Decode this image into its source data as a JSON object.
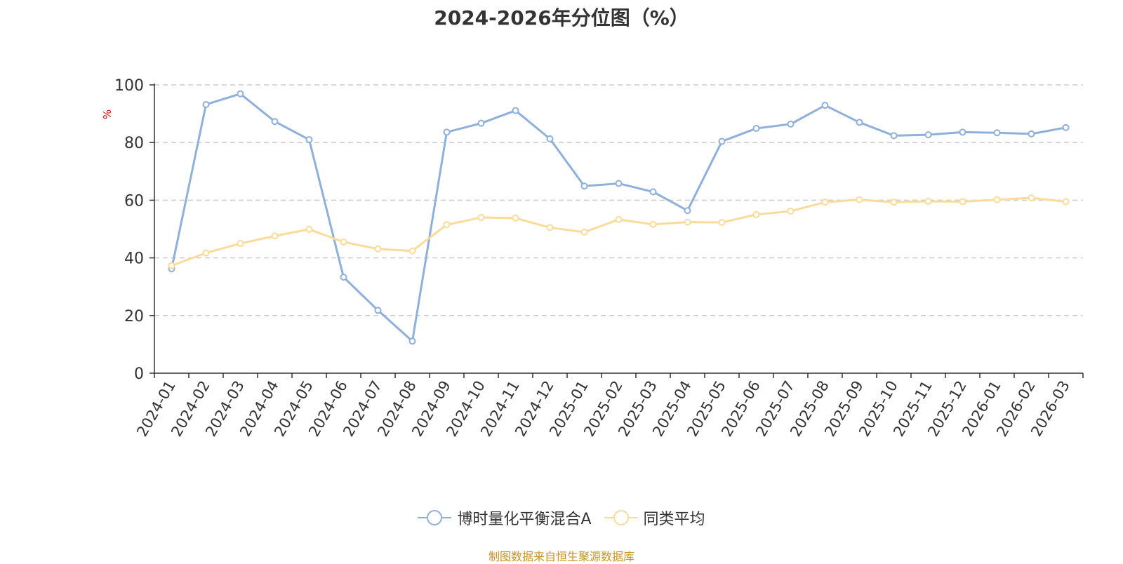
{
  "chart_data": {
    "type": "line",
    "title": "2024-2026年分位图（%）",
    "ylabel": "%",
    "xlabel": "",
    "ylim": [
      0,
      100
    ],
    "yticks": [
      0,
      20,
      40,
      60,
      80,
      100
    ],
    "grid": true,
    "legend_position": "bottom-center",
    "categories": [
      "2024-01",
      "2024-02",
      "2024-03",
      "2024-04",
      "2024-05",
      "2024-06",
      "2024-07",
      "2024-08",
      "2024-09",
      "2024-10",
      "2024-11",
      "2024-12",
      "2025-01",
      "2025-02",
      "2025-03",
      "2025-04",
      "2025-05",
      "2025-06",
      "2025-07",
      "2025-08",
      "2025-09",
      "2025-10",
      "2025-11",
      "2025-12",
      "2026-01",
      "2026-02",
      "2026-03"
    ],
    "series": [
      {
        "name": "博时量化平衡混合A",
        "color": "#8eb0db",
        "values": [
          36.2,
          93.2,
          96.9,
          87.3,
          81.0,
          33.3,
          21.8,
          11.1,
          83.6,
          86.7,
          91.1,
          81.3,
          64.9,
          65.8,
          62.9,
          56.4,
          80.4,
          84.9,
          86.4,
          92.9,
          87.0,
          82.4,
          82.7,
          83.6,
          83.4,
          83.0,
          85.2
        ]
      },
      {
        "name": "同类平均",
        "color": "#fbdb9a",
        "values": [
          37.3,
          41.7,
          45.0,
          47.6,
          49.9,
          45.5,
          43.1,
          42.4,
          51.5,
          54.0,
          53.8,
          50.5,
          48.9,
          53.3,
          51.6,
          52.4,
          52.3,
          55.0,
          56.2,
          59.3,
          60.2,
          59.3,
          59.6,
          59.5,
          60.2,
          60.8,
          59.5
        ]
      }
    ]
  },
  "source_text": "制图数据来自恒生聚源数据库",
  "source_color": "#c9941a"
}
